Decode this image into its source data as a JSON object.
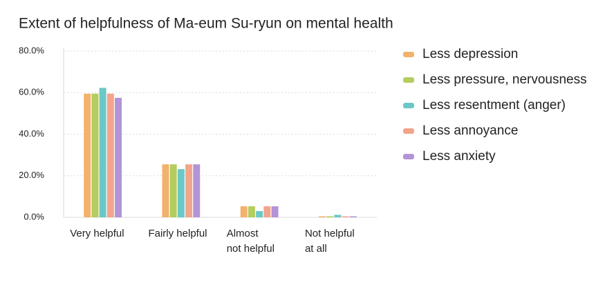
{
  "chart_data": {
    "type": "bar",
    "title": "Extent of helpfulness of Ma-eum Su-ryun on mental health",
    "categories": [
      "Very helpful",
      "Fairly helpful",
      "Almost\nnot helpful",
      "Not helpful\nat all"
    ],
    "series": [
      {
        "name": "Less depression",
        "color": "#f2b26b",
        "values": [
          59.5,
          25.5,
          5.3,
          0.5
        ]
      },
      {
        "name": "Less pressure, nervousness",
        "color": "#b5cc5e",
        "values": [
          59.5,
          25.5,
          5.3,
          0.5
        ]
      },
      {
        "name": "Less resentment (anger)",
        "color": "#6cc8c6",
        "values": [
          62.3,
          23.2,
          3.0,
          1.2
        ]
      },
      {
        "name": "Less annoyance",
        "color": "#f2a58b",
        "values": [
          59.5,
          25.5,
          5.3,
          0.5
        ]
      },
      {
        "name": "Less anxiety",
        "color": "#b294d8",
        "values": [
          57.5,
          25.5,
          5.3,
          0.5
        ]
      }
    ],
    "ylim": [
      0,
      80
    ],
    "yticks": [
      {
        "value": 0,
        "label": "0.0%"
      },
      {
        "value": 20,
        "label": "20.0%"
      },
      {
        "value": 40,
        "label": "40.0%"
      },
      {
        "value": 60,
        "label": "60.0%"
      },
      {
        "value": 80,
        "label": "80.0%"
      }
    ],
    "grid": true,
    "legend": "right"
  }
}
